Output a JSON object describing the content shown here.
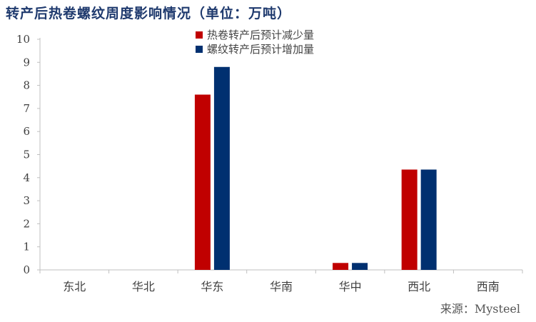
{
  "title": "转产后热卷螺纹周度影响情况（单位：万吨）",
  "source": "来源：Mysteel",
  "colors": {
    "red": "#c00000",
    "blue": "#003070",
    "axis": "#bfbfbf",
    "text": "#404040"
  },
  "chart_data": {
    "type": "bar",
    "categories": [
      "东北",
      "华北",
      "华东",
      "华南",
      "华中",
      "西北",
      "西南"
    ],
    "series": [
      {
        "name": "热卷转产后预计减少量",
        "values": [
          0,
          0,
          7.6,
          0,
          0.3,
          4.35,
          0
        ]
      },
      {
        "name": "螺纹转产后预计增加量",
        "values": [
          0,
          0,
          8.8,
          0,
          0.3,
          4.35,
          0
        ]
      }
    ],
    "ylim": [
      0,
      10
    ],
    "yticks": [
      0,
      1,
      2,
      3,
      4,
      5,
      6,
      7,
      8,
      9,
      10
    ],
    "grid": false,
    "legend_position": "top-center"
  }
}
